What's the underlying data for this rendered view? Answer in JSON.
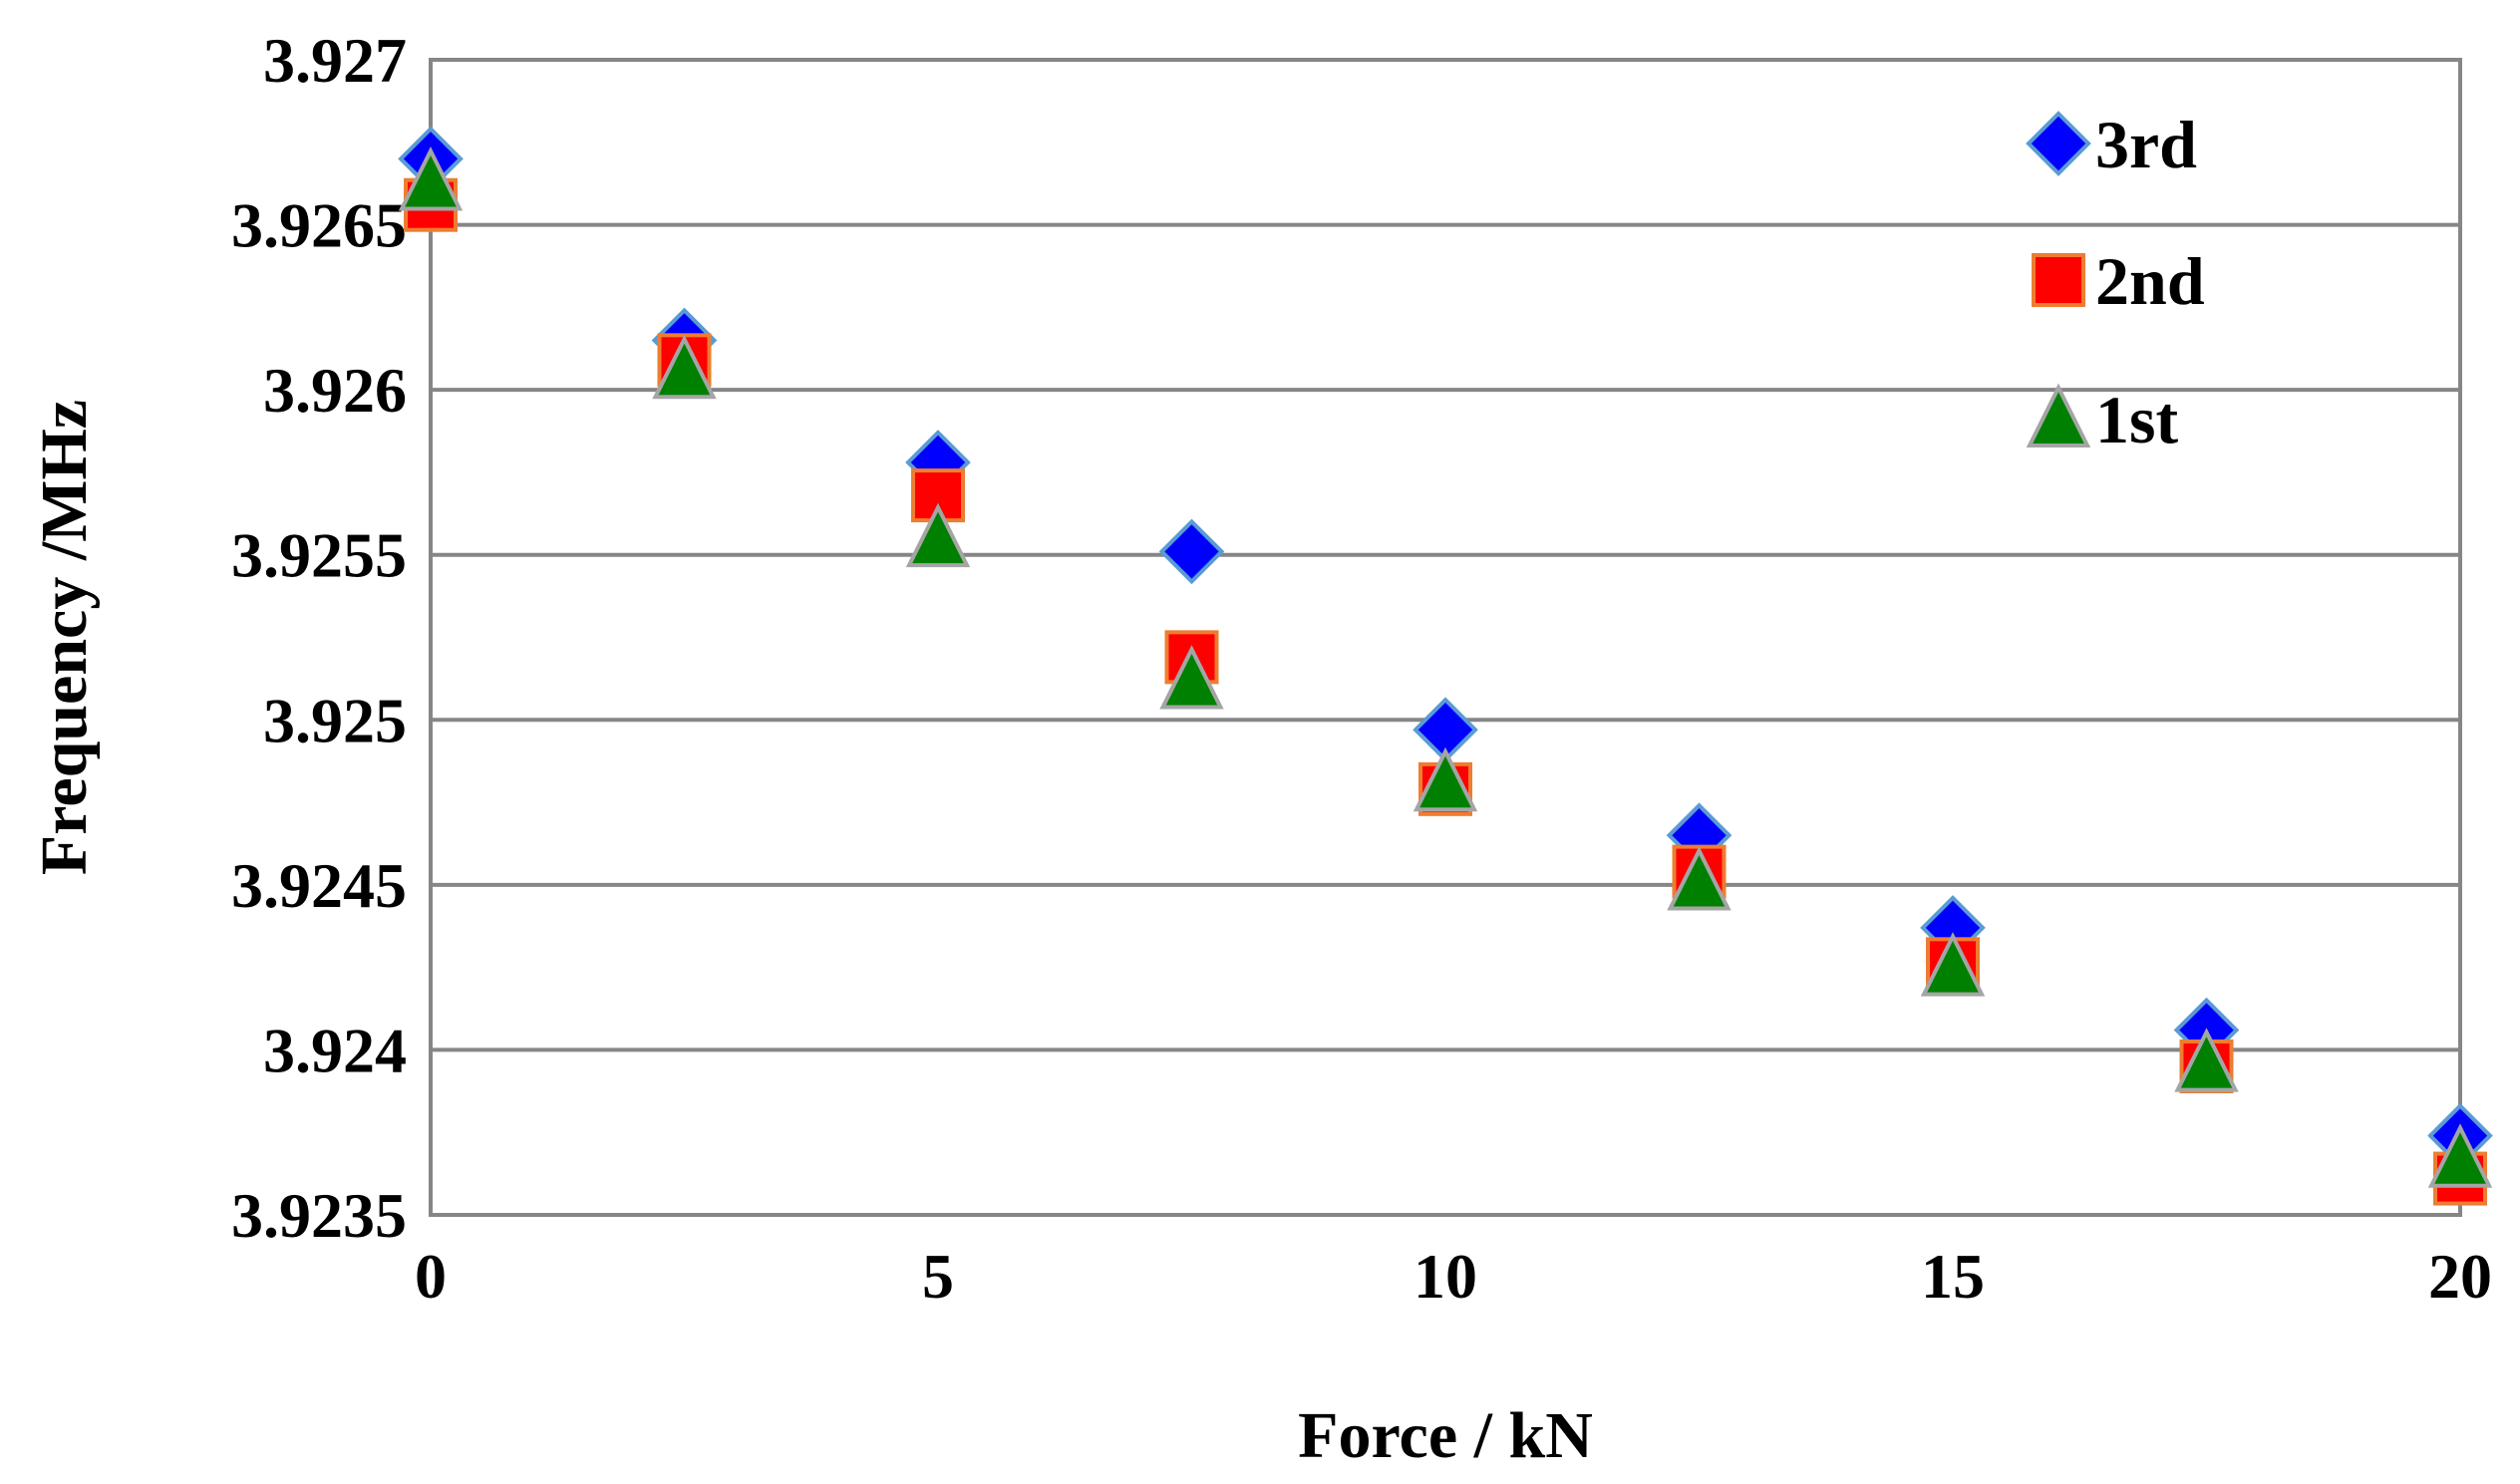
{
  "chart_data": {
    "type": "scatter",
    "title": "",
    "xlabel": "Force / kN",
    "ylabel": "Frequency /MHz",
    "xlim": [
      0,
      20
    ],
    "ylim": [
      3.9235,
      3.927
    ],
    "xticks": [
      "0",
      "5",
      "10",
      "15",
      "20"
    ],
    "xtick_values": [
      0,
      5,
      10,
      15,
      20
    ],
    "yticks": [
      "3.9235",
      "3.924",
      "3.9245",
      "3.925",
      "3.9255",
      "3.926",
      "3.9265",
      "3.927"
    ],
    "ytick_values": [
      3.9235,
      3.924,
      3.9245,
      3.925,
      3.9255,
      3.926,
      3.9265,
      3.927
    ],
    "grid": "horizontal",
    "legend_position": "top-right",
    "x": [
      0,
      2.5,
      5,
      7.5,
      10,
      12.5,
      15,
      17.5,
      20
    ],
    "series": [
      {
        "name": "3rd",
        "marker": "diamond",
        "color": "#0000FF",
        "edge_color": "#5B9BD5",
        "values": [
          3.9267,
          3.92615,
          3.92578,
          3.92551,
          3.92497,
          3.92465,
          3.92437,
          3.92406,
          3.92374
        ]
      },
      {
        "name": "2nd",
        "marker": "square",
        "color": "#FF0000",
        "edge_color": "#ED7D31",
        "values": [
          3.92656,
          3.92609,
          3.92568,
          3.92519,
          3.92479,
          3.92454,
          3.92426,
          3.92395,
          3.92361
        ]
      },
      {
        "name": "1st",
        "marker": "triangle",
        "color": "#008000",
        "edge_color": "#A5A5A5",
        "values": [
          3.92663,
          3.92606,
          3.92555,
          3.92512,
          3.92481,
          3.92451,
          3.92425,
          3.92396,
          3.92367
        ]
      }
    ]
  }
}
